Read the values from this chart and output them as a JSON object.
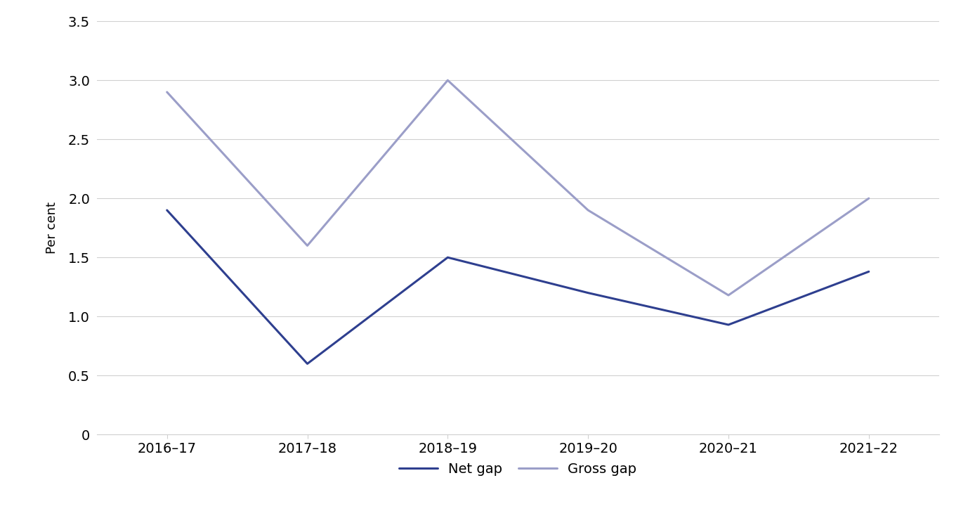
{
  "categories": [
    "2016–17",
    "2017–18",
    "2018–19",
    "2019–20",
    "2020–21",
    "2021–22"
  ],
  "net_gap": [
    1.9,
    0.6,
    1.5,
    1.2,
    0.93,
    1.38
  ],
  "gross_gap": [
    2.9,
    1.6,
    3.0,
    1.9,
    1.18,
    2.0
  ],
  "net_gap_color": "#2e3f8f",
  "gross_gap_color": "#9b9ec8",
  "net_gap_label": "Net gap",
  "gross_gap_label": "Gross gap",
  "ylabel": "Per cent",
  "ylim": [
    0,
    3.5
  ],
  "ytick_values": [
    0,
    0.5,
    1.0,
    1.5,
    2.0,
    2.5,
    3.0,
    3.5
  ],
  "ytick_labels": [
    "0",
    "0.5",
    "1.0",
    "1.5",
    "2.0",
    "2.5",
    "3.0",
    "3.5"
  ],
  "background_color": "#ffffff",
  "grid_color": "#d0d0d0",
  "spine_color": "#d0d0d0",
  "line_width": 2.2,
  "legend_fontsize": 14,
  "ylabel_fontsize": 13,
  "tick_fontsize": 14
}
